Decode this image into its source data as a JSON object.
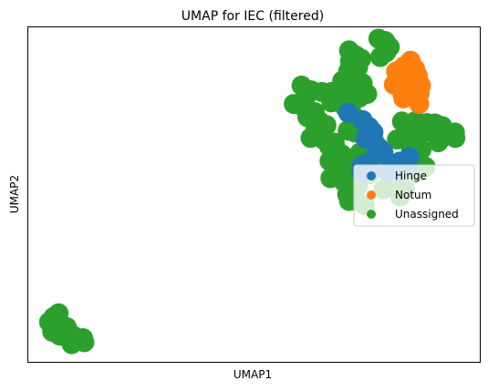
{
  "chart_data": {
    "type": "scatter",
    "title": "UMAP for IEC (filtered)",
    "xlabel": "UMAP1",
    "ylabel": "UMAP2",
    "xlim": [
      0,
      100
    ],
    "ylim": [
      0,
      100
    ],
    "grid": false,
    "ticks": false,
    "legend_placement": "center-right",
    "marker_size": 11,
    "series": [
      {
        "name": "Unassigned",
        "color": "#2ca02c",
        "points": [
          [
            77.5,
            96.5
          ],
          [
            79.0,
            95.8
          ],
          [
            80.0,
            94.0
          ],
          [
            79.2,
            92.4
          ],
          [
            77.9,
            91.0
          ],
          [
            71.0,
            93.0
          ],
          [
            72.5,
            91.5
          ],
          [
            73.7,
            90.5
          ],
          [
            71.2,
            89.8
          ],
          [
            73.0,
            88.0
          ],
          [
            70.8,
            86.8
          ],
          [
            70.2,
            84.4
          ],
          [
            71.9,
            83.4
          ],
          [
            74.0,
            83.2
          ],
          [
            73.7,
            81.9
          ],
          [
            72.0,
            81.1
          ],
          [
            75.0,
            80.0
          ],
          [
            73.3,
            78.9
          ],
          [
            69.5,
            83.9
          ],
          [
            70.4,
            80.0
          ],
          [
            70.0,
            77.8
          ],
          [
            71.0,
            77.2
          ],
          [
            65.0,
            80.6
          ],
          [
            67.1,
            80.6
          ],
          [
            68.5,
            79.4
          ],
          [
            70.1,
            79.5
          ],
          [
            67.1,
            77.5
          ],
          [
            70.2,
            75.8
          ],
          [
            71.5,
            74.8
          ],
          [
            60.5,
            82.5
          ],
          [
            62.6,
            81.1
          ],
          [
            61.7,
            79.6
          ],
          [
            58.8,
            77.0
          ],
          [
            61.0,
            76.0
          ],
          [
            61.8,
            73.1
          ],
          [
            63.4,
            74.6
          ],
          [
            62.8,
            72.4
          ],
          [
            64.6,
            71.7
          ],
          [
            66.0,
            70.7
          ],
          [
            63.6,
            69.5
          ],
          [
            62.5,
            66.9
          ],
          [
            65.3,
            66.4
          ],
          [
            67.8,
            65.5
          ],
          [
            68.1,
            63.8
          ],
          [
            66.6,
            64.4
          ],
          [
            69.5,
            61.9
          ],
          [
            69.5,
            60.3
          ],
          [
            68.0,
            59.5
          ],
          [
            66.7,
            60.0
          ],
          [
            68.9,
            56.9
          ],
          [
            66.9,
            54.9
          ],
          [
            69.9,
            53.7
          ],
          [
            71.4,
            52.4
          ],
          [
            73.0,
            52.6
          ],
          [
            70.6,
            50.0
          ],
          [
            71.0,
            48.1
          ],
          [
            72.6,
            48.1
          ],
          [
            74.5,
            46.9
          ],
          [
            70.3,
            56.6
          ],
          [
            70.5,
            52.7
          ],
          [
            75.4,
            56.0
          ],
          [
            72.8,
            58.8
          ],
          [
            73.4,
            62.5
          ],
          [
            70.7,
            69.1
          ],
          [
            72.3,
            68.5
          ],
          [
            82.7,
            71.8
          ],
          [
            84.2,
            70.7
          ],
          [
            85.7,
            71.9
          ],
          [
            88.2,
            71.3
          ],
          [
            87.6,
            68.7
          ],
          [
            85.3,
            67.7
          ],
          [
            83.0,
            66.9
          ],
          [
            81.6,
            66.4
          ],
          [
            84.7,
            63.2
          ],
          [
            87.0,
            63.4
          ],
          [
            90.0,
            71.2
          ],
          [
            91.6,
            70.4
          ],
          [
            92.9,
            68.3
          ],
          [
            94.4,
            68.5
          ],
          [
            91.6,
            67.0
          ],
          [
            94.5,
            66.9
          ],
          [
            90.7,
            65.6
          ],
          [
            86.0,
            56.5
          ],
          [
            87.9,
            58.3
          ],
          [
            80.2,
            53.4
          ],
          [
            83.4,
            51.5
          ],
          [
            82.3,
            49.4
          ],
          [
            78.6,
            51.6
          ],
          [
            5.7,
            13.5
          ],
          [
            6.8,
            14.6
          ],
          [
            4.7,
            12.0
          ],
          [
            6.1,
            11.4
          ],
          [
            8.6,
            10.5
          ],
          [
            5.4,
            9.1
          ],
          [
            7.0,
            8.0
          ],
          [
            8.5,
            7.5
          ],
          [
            10.0,
            8.0
          ],
          [
            11.4,
            6.5
          ],
          [
            9.7,
            5.4
          ],
          [
            12.2,
            7.2
          ],
          [
            12.5,
            6.0
          ],
          [
            7.4,
            10.0
          ]
        ]
      },
      {
        "name": "Hinge",
        "color": "#1f77b4",
        "points": [
          [
            70.8,
            74.4
          ],
          [
            74.0,
            72.2
          ],
          [
            75.4,
            70.2
          ],
          [
            76.4,
            68.6
          ],
          [
            74.6,
            66.8
          ],
          [
            76.6,
            65.8
          ],
          [
            77.6,
            64.0
          ],
          [
            78.6,
            62.5
          ],
          [
            76.7,
            61.6
          ],
          [
            75.2,
            59.4
          ],
          [
            73.8,
            58.6
          ],
          [
            73.7,
            56.7
          ],
          [
            80.3,
            59.1
          ],
          [
            82.2,
            59.8
          ],
          [
            84.4,
            61.2
          ],
          [
            79.5,
            56.8
          ],
          [
            81.6,
            56.8
          ],
          [
            83.8,
            58.3
          ],
          [
            76.0,
            57.5
          ]
        ]
      },
      {
        "name": "Notum",
        "color": "#ff7f0e",
        "points": [
          [
            84.6,
            89.9
          ],
          [
            83.1,
            88.2
          ],
          [
            85.6,
            87.5
          ],
          [
            82.6,
            85.0
          ],
          [
            81.4,
            86.7
          ],
          [
            80.9,
            82.8
          ],
          [
            82.8,
            80.0
          ],
          [
            83.0,
            78.7
          ],
          [
            85.0,
            81.2
          ],
          [
            86.5,
            77.0
          ],
          [
            86.9,
            82.5
          ],
          [
            86.2,
            85.4
          ],
          [
            86.6,
            80.1
          ],
          [
            84.1,
            84.0
          ]
        ]
      }
    ],
    "legend_order": [
      "Hinge",
      "Notum",
      "Unassigned"
    ]
  }
}
